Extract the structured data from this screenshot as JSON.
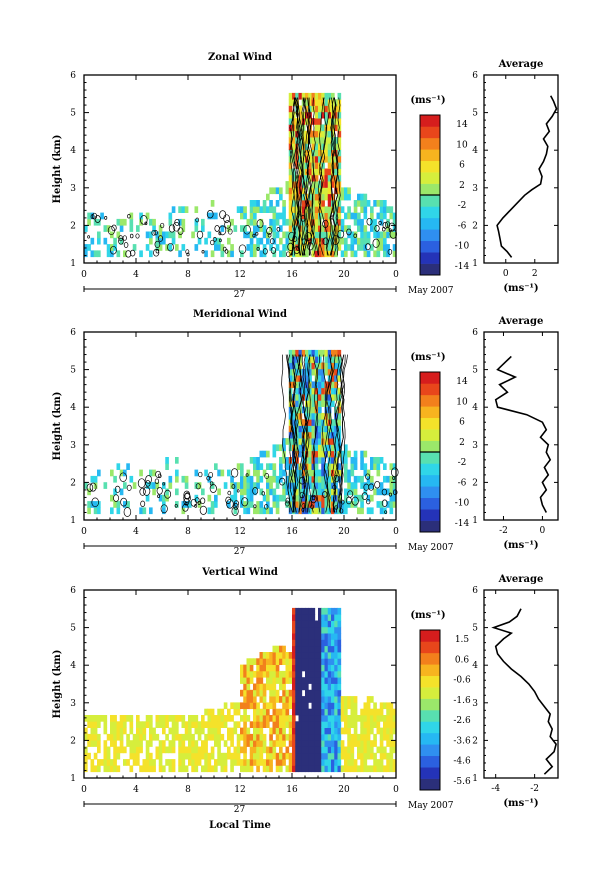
{
  "chart_data": [
    {
      "type": "heatmap",
      "title": "Zonal Wind",
      "ylabel": "Height (km)",
      "ylim": [
        1,
        6
      ],
      "yticks": [
        "1",
        "2",
        "3",
        "4",
        "5",
        "6"
      ],
      "xlim": [
        0,
        24
      ],
      "xticks": [
        "0",
        "4",
        "8",
        "12",
        "16",
        "20",
        "0"
      ],
      "date_axis": {
        "day_label": "27",
        "month_label": "May 2007"
      },
      "colorbar": {
        "unit": "(ms⁻¹)",
        "ticks": [
          "14",
          "10",
          "6",
          "2",
          "-2",
          "-6",
          "-10",
          "-14"
        ],
        "vmin": -16,
        "vmax": 16
      },
      "colors": [
        "#2b2f7a",
        "#2433b8",
        "#2b60e0",
        "#2f8ff0",
        "#26b8f2",
        "#30d6e8",
        "#58e0b0",
        "#9be86a",
        "#d6ee3c",
        "#f4e22a",
        "#f7b41f",
        "#f2801c",
        "#e8461b",
        "#d61d1d"
      ],
      "active_band": {
        "start": 15.8,
        "end": 19.8,
        "top": 5.5
      },
      "background_cloud": {
        "start": 0,
        "end": 24,
        "top": 2.5
      },
      "profile": {
        "title": "Average",
        "xlabel": "(ms⁻¹)",
        "xticks": [
          {
            "v": 0,
            "label": "0"
          },
          {
            "v": 2,
            "label": "2"
          }
        ],
        "xlim": [
          -1.5,
          3.6
        ],
        "ylim": [
          1,
          6
        ],
        "yticks": [
          "1",
          "2",
          "3",
          "4",
          "5",
          "6"
        ],
        "y": [
          1.15,
          1.3,
          1.45,
          1.65,
          1.85,
          2.0,
          2.2,
          2.4,
          2.6,
          2.8,
          2.95,
          3.1,
          3.3,
          3.5,
          3.7,
          3.9,
          4.1,
          4.3,
          4.5,
          4.7,
          4.9,
          5.1,
          5.3,
          5.45
        ],
        "x": [
          0.4,
          0.1,
          -0.3,
          -0.4,
          -0.5,
          -0.6,
          -0.2,
          0.3,
          0.8,
          1.3,
          1.8,
          2.4,
          2.5,
          2.3,
          2.6,
          2.8,
          2.9,
          2.6,
          3.0,
          2.8,
          3.2,
          3.5,
          3.3,
          3.1
        ]
      }
    },
    {
      "type": "heatmap",
      "title": "Meridional Wind",
      "ylabel": "Height (km)",
      "ylim": [
        1,
        6
      ],
      "yticks": [
        "1",
        "2",
        "3",
        "4",
        "5",
        "6"
      ],
      "xlim": [
        0,
        24
      ],
      "xticks": [
        "0",
        "4",
        "8",
        "12",
        "16",
        "20",
        "0"
      ],
      "date_axis": {
        "day_label": "27",
        "month_label": "May 2007"
      },
      "colorbar": {
        "unit": "(ms⁻¹)",
        "ticks": [
          "14",
          "10",
          "6",
          "2",
          "-2",
          "-6",
          "-10",
          "-14"
        ],
        "vmin": -16,
        "vmax": 16
      },
      "colors": [
        "#2b2f7a",
        "#2433b8",
        "#2b60e0",
        "#2f8ff0",
        "#26b8f2",
        "#30d6e8",
        "#58e0b0",
        "#9be86a",
        "#d6ee3c",
        "#f4e22a",
        "#f7b41f",
        "#f2801c",
        "#e8461b",
        "#d61d1d"
      ],
      "active_band": {
        "start": 15.8,
        "end": 19.8,
        "top": 5.5
      },
      "background_cloud": {
        "start": 0,
        "end": 24,
        "top": 2.5
      },
      "profile": {
        "title": "Average",
        "xlabel": "(ms⁻¹)",
        "xticks": [
          {
            "v": -2,
            "label": "-2"
          },
          {
            "v": 0,
            "label": "0"
          }
        ],
        "xlim": [
          -3.0,
          0.8
        ],
        "ylim": [
          1,
          6
        ],
        "yticks": [
          "1",
          "2",
          "3",
          "4",
          "5",
          "6"
        ],
        "y": [
          1.2,
          1.4,
          1.6,
          1.8,
          2.0,
          2.2,
          2.4,
          2.6,
          2.8,
          3.0,
          3.2,
          3.4,
          3.6,
          3.8,
          4.0,
          4.2,
          4.4,
          4.6,
          4.8,
          5.0,
          5.2,
          5.35
        ],
        "x": [
          0.2,
          0.0,
          -0.1,
          0.2,
          0.0,
          0.3,
          0.1,
          0.4,
          0.2,
          0.3,
          -0.1,
          0.2,
          0.0,
          -0.8,
          -2.3,
          -2.4,
          -1.8,
          -2.2,
          -1.4,
          -2.3,
          -1.9,
          -1.6
        ]
      }
    },
    {
      "type": "heatmap",
      "title": "Vertical Wind",
      "ylabel": "Height (km)",
      "ylim": [
        1,
        6
      ],
      "yticks": [
        "1",
        "2",
        "3",
        "4",
        "5",
        "6"
      ],
      "xlim": [
        0,
        24
      ],
      "xticks": [
        "0",
        "4",
        "8",
        "12",
        "16",
        "20",
        "0"
      ],
      "date_axis": {
        "day_label": "27",
        "month_label": "May 2007"
      },
      "xlabel": "Local Time",
      "colorbar": {
        "unit": "(ms⁻¹)",
        "ticks": [
          "1.5",
          "0.6",
          "-0.6",
          "-1.6",
          "-2.6",
          "-3.6",
          "-4.6",
          "-5.6"
        ],
        "vmin": -6.0,
        "vmax": 2.0
      },
      "colors": [
        "#2b2f7a",
        "#2433b8",
        "#2b60e0",
        "#2f8ff0",
        "#26b8f2",
        "#30d6e8",
        "#58e0b0",
        "#9be86a",
        "#d6ee3c",
        "#f4e22a",
        "#f7b41f",
        "#f2801c",
        "#e8461b",
        "#d61d1d"
      ],
      "active_band": {
        "start": 16.0,
        "end": 19.8,
        "top": 5.5
      },
      "background_cloud": {
        "start": 0,
        "end": 24,
        "top": 3.2
      },
      "profile": {
        "title": "Average",
        "xlabel": "(ms⁻¹)",
        "xticks": [
          {
            "v": -4,
            "label": "-4"
          },
          {
            "v": -2,
            "label": "-2"
          }
        ],
        "xlim": [
          -4.6,
          -0.8
        ],
        "ylim": [
          1,
          6
        ],
        "yticks": [
          "1",
          "2",
          "3",
          "4",
          "5",
          "6"
        ],
        "y": [
          1.1,
          1.3,
          1.5,
          1.7,
          1.9,
          2.1,
          2.3,
          2.5,
          2.7,
          2.9,
          3.1,
          3.3,
          3.5,
          3.7,
          3.9,
          4.1,
          4.3,
          4.5,
          4.7,
          4.85,
          5.0,
          5.15,
          5.3,
          5.5
        ],
        "x": [
          -1.5,
          -1.1,
          -1.4,
          -1.0,
          -0.9,
          -1.2,
          -1.1,
          -1.3,
          -1.2,
          -1.5,
          -1.8,
          -2.0,
          -2.3,
          -2.7,
          -3.2,
          -3.6,
          -3.9,
          -4.0,
          -3.6,
          -3.2,
          -4.1,
          -3.3,
          -2.9,
          -2.7
        ]
      }
    }
  ]
}
